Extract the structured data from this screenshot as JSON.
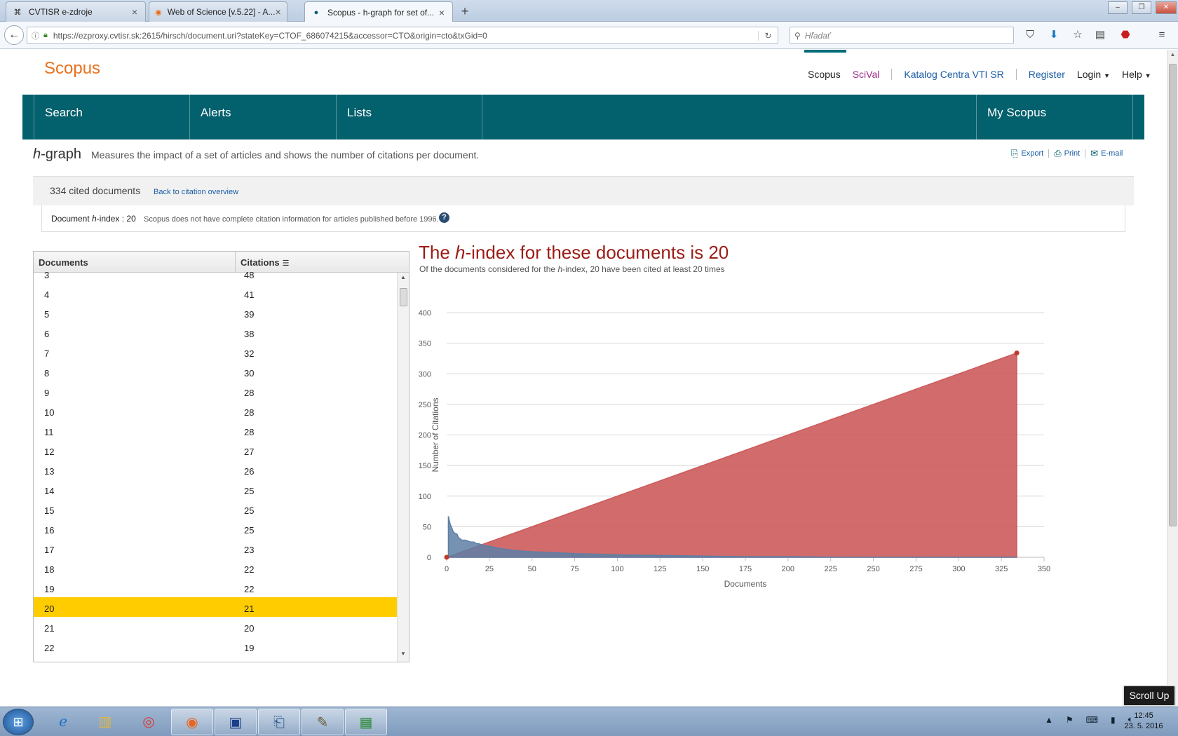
{
  "browser": {
    "tabs": [
      {
        "title": "CVTISR e-zdroje",
        "icon": "globe-icon"
      },
      {
        "title": "Web of Science [v.5.22] - A...",
        "icon": "wos-icon"
      },
      {
        "title": "Scopus - h-graph for set of...",
        "icon": "scopus-icon",
        "active": true
      }
    ],
    "url": "https://ezproxy.cvtisr.sk:2615/hirsch/document.uri?stateKey=CTOF_686074215&accessor=CTO&origin=cto&txGid=0",
    "search_placeholder": "Hľadať"
  },
  "header": {
    "logo": "Scopus",
    "links": {
      "scopus": "Scopus",
      "scival": "SciVal",
      "katalog": "Katalog Centra VTI SR",
      "register": "Register",
      "login": "Login",
      "help": "Help"
    }
  },
  "mainnav": {
    "search": "Search",
    "alerts": "Alerts",
    "lists": "Lists",
    "myscopus": "My Scopus"
  },
  "hgraph": {
    "title_h": "h",
    "title_rest": "-graph",
    "description": "Measures the impact of a set of articles and shows the number of citations per document.",
    "actions": {
      "export": "Export",
      "print": "Print",
      "email": "E-mail"
    },
    "cited_count": "334 cited documents",
    "back_link": "Back to citation overview",
    "hindex_label_pre": "Document ",
    "hindex_label_h": "h",
    "hindex_label_post": "-index : 20",
    "hindex_note": "Scopus does not have complete citation information for articles published before 1996.",
    "help": "?"
  },
  "table": {
    "col_docs": "Documents",
    "col_cit": "Citations",
    "rows": [
      {
        "doc": "3",
        "cit": "48"
      },
      {
        "doc": "4",
        "cit": "41"
      },
      {
        "doc": "5",
        "cit": "39"
      },
      {
        "doc": "6",
        "cit": "38"
      },
      {
        "doc": "7",
        "cit": "32"
      },
      {
        "doc": "8",
        "cit": "30"
      },
      {
        "doc": "9",
        "cit": "28"
      },
      {
        "doc": "10",
        "cit": "28"
      },
      {
        "doc": "11",
        "cit": "28"
      },
      {
        "doc": "12",
        "cit": "27"
      },
      {
        "doc": "13",
        "cit": "26"
      },
      {
        "doc": "14",
        "cit": "25"
      },
      {
        "doc": "15",
        "cit": "25"
      },
      {
        "doc": "16",
        "cit": "25"
      },
      {
        "doc": "17",
        "cit": "23"
      },
      {
        "doc": "18",
        "cit": "22"
      },
      {
        "doc": "19",
        "cit": "22"
      },
      {
        "doc": "20",
        "cit": "21",
        "highlight": true
      },
      {
        "doc": "21",
        "cit": "20"
      },
      {
        "doc": "22",
        "cit": "19"
      }
    ],
    "highlight_color": "#ffcc00"
  },
  "chart_heading": {
    "pre": "The ",
    "h": "h",
    "post": "-index for these documents is 20",
    "sub_pre": "Of the documents considered for the ",
    "sub_h": "h",
    "sub_post": "-index, 20 have been cited at least 20 times"
  },
  "chart_data": {
    "type": "area",
    "xlabel": "Documents",
    "ylabel": "Number of Citations",
    "xlim": [
      0,
      350
    ],
    "ylim": [
      0,
      400
    ],
    "xticks": [
      0,
      25,
      50,
      75,
      100,
      125,
      150,
      175,
      200,
      225,
      250,
      275,
      300,
      325,
      350
    ],
    "yticks": [
      0,
      50,
      100,
      150,
      200,
      250,
      300,
      350,
      400
    ],
    "grid": true,
    "series": [
      {
        "color": "#cd5b5b",
        "points": [
          [
            0,
            0
          ],
          [
            334,
            334
          ]
        ]
      },
      {
        "color": "#5e7fa6",
        "points": [
          [
            1,
            67
          ],
          [
            2,
            55
          ],
          [
            3,
            48
          ],
          [
            4,
            41
          ],
          [
            5,
            39
          ],
          [
            6,
            38
          ],
          [
            7,
            32
          ],
          [
            8,
            30
          ],
          [
            9,
            28
          ],
          [
            10,
            28
          ],
          [
            11,
            28
          ],
          [
            12,
            27
          ],
          [
            13,
            26
          ],
          [
            14,
            25
          ],
          [
            15,
            25
          ],
          [
            16,
            25
          ],
          [
            17,
            23
          ],
          [
            18,
            22
          ],
          [
            19,
            22
          ],
          [
            20,
            21
          ],
          [
            21,
            20
          ],
          [
            22,
            19
          ],
          [
            25,
            18
          ],
          [
            30,
            15
          ],
          [
            35,
            13
          ],
          [
            40,
            11
          ],
          [
            50,
            9
          ],
          [
            60,
            8
          ],
          [
            75,
            6
          ],
          [
            90,
            5
          ],
          [
            100,
            4
          ],
          [
            125,
            3
          ],
          [
            150,
            2
          ],
          [
            175,
            1
          ],
          [
            200,
            1
          ],
          [
            230,
            0
          ],
          [
            334,
            0
          ]
        ]
      }
    ],
    "markers": [
      [
        0,
        0
      ],
      [
        334,
        334
      ]
    ]
  },
  "scroll_up": "Scroll Up",
  "taskbar": {
    "clock_time": "12:45",
    "clock_date": "23. 5. 2016"
  }
}
